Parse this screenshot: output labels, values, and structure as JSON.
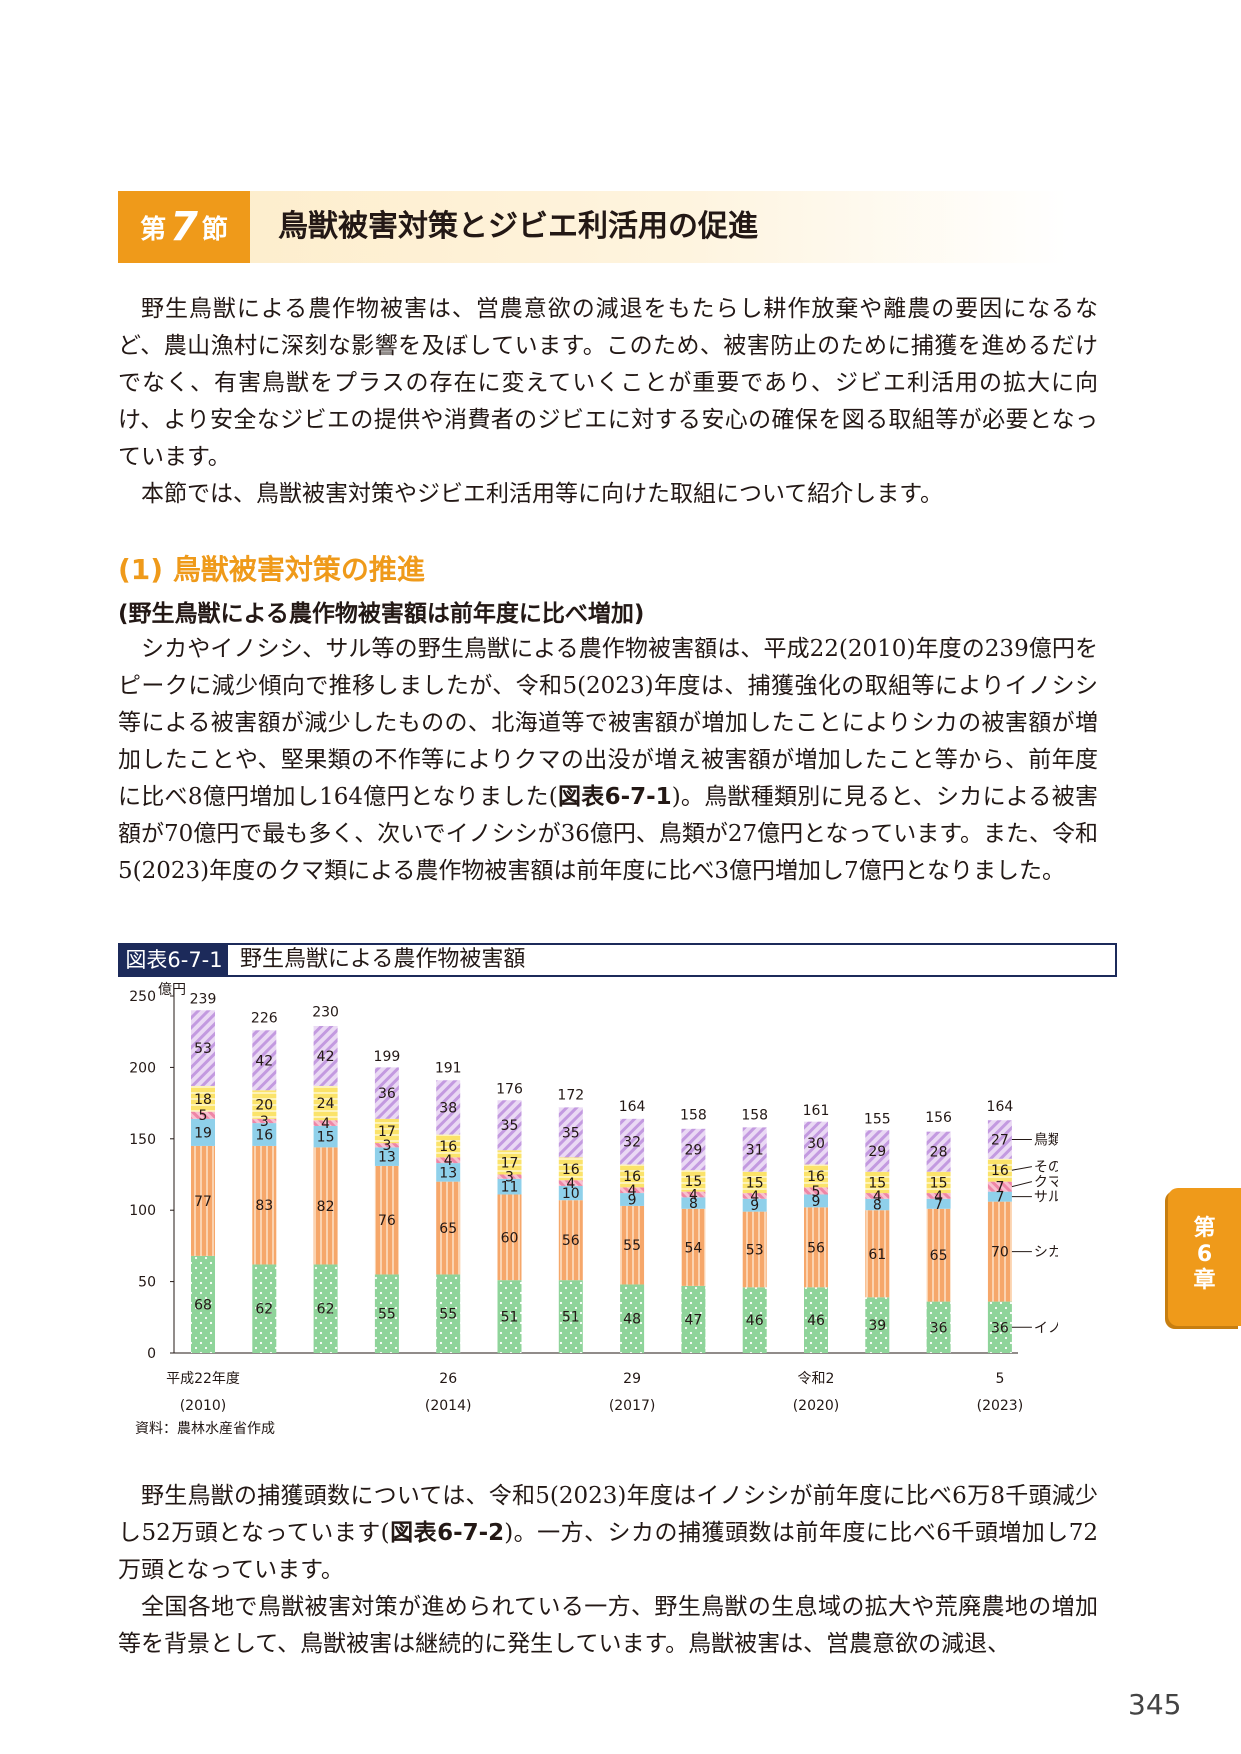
{
  "section": {
    "prefix": "第",
    "number": "7",
    "suffix": "節",
    "title": "鳥獣被害対策とジビエ利活用の促進"
  },
  "intro": [
    "野生鳥獣による農作物被害は、営農意欲の減退をもたらし耕作放棄や離農の要因になるなど、農山漁村に深刻な影響を及ぼしています。このため、被害防止のために捕獲を進めるだけでなく、有害鳥獣をプラスの存在に変えていくことが重要であり、ジビエ利活用の拡大に向け、より安全なジビエの提供や消費者のジビエに対する安心の確保を図る取組等が必要となっています。",
    "本節では、鳥獣被害対策やジビエ利活用等に向けた取組について紹介します。"
  ],
  "heading2": "(1) 鳥獣被害対策の推進",
  "heading3": "(野生鳥獣による農作物被害額は前年度に比べ増加)",
  "body1": {
    "before": "シカやイノシシ、サル等の野生鳥獣による農作物被害額は、平成22(2010)年度の239億円をピークに減少傾向で推移しましたが、令和5(2023)年度は、捕獲強化の取組等によりイノシシ等による被害額が減少したものの、北海道等で被害額が増加したことによりシカの被害額が増加したことや、堅果類の不作等によりクマの出没が増え被害額が増加したこと等から、前年度に比べ8億円増加し164億円となりました(",
    "ref": "図表6-7-1",
    "after": ")。鳥獣種類別に見ると、シカによる被害額が70億円で最も多く、次いでイノシシが36億円、鳥類が27億円となっています。また、令和5(2023)年度のクマ類による農作物被害額は前年度に比べ3億円増加し7億円となりました。"
  },
  "figure": {
    "label": "図表6-7-1",
    "title": "野生鳥獣による農作物被害額",
    "source": "資料：農林水産省作成"
  },
  "chart_data": {
    "type": "bar",
    "stacked": true,
    "y_unit": "億円",
    "ylim": [
      0,
      250
    ],
    "yticks": [
      "0",
      "50",
      "100",
      "150",
      "200",
      "250"
    ],
    "categories": [
      "2010",
      "2011",
      "2012",
      "2013",
      "2014",
      "2015",
      "2016",
      "2017",
      "2018",
      "2019",
      "2020",
      "2021",
      "2022",
      "2023"
    ],
    "x_tick_labels": [
      {
        "index": 0,
        "line1": "平成22年度",
        "line2": "(2010)"
      },
      {
        "index": 4,
        "line1": "26",
        "line2": "(2014)"
      },
      {
        "index": 7,
        "line1": "29",
        "line2": "(2017)"
      },
      {
        "index": 10,
        "line1": "令和2",
        "line2": "(2020)"
      },
      {
        "index": 13,
        "line1": "5",
        "line2": "(2023)"
      }
    ],
    "totals": [
      239,
      226,
      230,
      199,
      191,
      176,
      172,
      164,
      158,
      158,
      161,
      155,
      156,
      164
    ],
    "series": [
      {
        "name": "イノシシ",
        "color": "#8fd49a",
        "pattern": "dots",
        "values": [
          68,
          62,
          62,
          55,
          55,
          51,
          51,
          48,
          47,
          46,
          46,
          39,
          36,
          36
        ]
      },
      {
        "name": "シカ",
        "color": "#f6a76a",
        "pattern": "vstripes",
        "values": [
          77,
          83,
          82,
          76,
          65,
          60,
          56,
          55,
          54,
          53,
          56,
          61,
          65,
          70
        ]
      },
      {
        "name": "サル",
        "color": "#8fd0ea",
        "pattern": "solid",
        "values": [
          19,
          16,
          15,
          13,
          13,
          11,
          10,
          9,
          8,
          9,
          9,
          8,
          7,
          7
        ]
      },
      {
        "name": "クマ",
        "color": "#f3a0b8",
        "pattern": "diag",
        "values": [
          5,
          3,
          4,
          3,
          4,
          3,
          4,
          4,
          4,
          4,
          5,
          4,
          4,
          7
        ]
      },
      {
        "name": "その他獣類",
        "color": "#fbe36a",
        "pattern": "hstripes",
        "values": [
          18,
          20,
          24,
          17,
          16,
          17,
          16,
          16,
          15,
          15,
          16,
          15,
          15,
          16
        ]
      },
      {
        "name": "鳥類",
        "color": "#c9a0e0",
        "pattern": "diag2",
        "values": [
          53,
          42,
          42,
          36,
          38,
          35,
          35,
          32,
          29,
          31,
          30,
          29,
          28,
          27
        ]
      }
    ]
  },
  "body2": {
    "before": "野生鳥獣の捕獲頭数については、令和5(2023)年度はイノシシが前年度に比べ6万8千頭減少し52万頭となっています(",
    "ref": "図表6-7-2",
    "after": ")。一方、シカの捕獲頭数は前年度に比べ6千頭増加し72万頭となっています。"
  },
  "body3": "全国各地で鳥獣被害対策が進められている一方、野生鳥獣の生息域の拡大や荒廃農地の増加等を背景として、鳥獣被害は継続的に発生しています。鳥獣被害は、営農意欲の減退、",
  "side_tab": {
    "line1": "第",
    "line2": "6",
    "line3": "章"
  },
  "page_number": "345"
}
